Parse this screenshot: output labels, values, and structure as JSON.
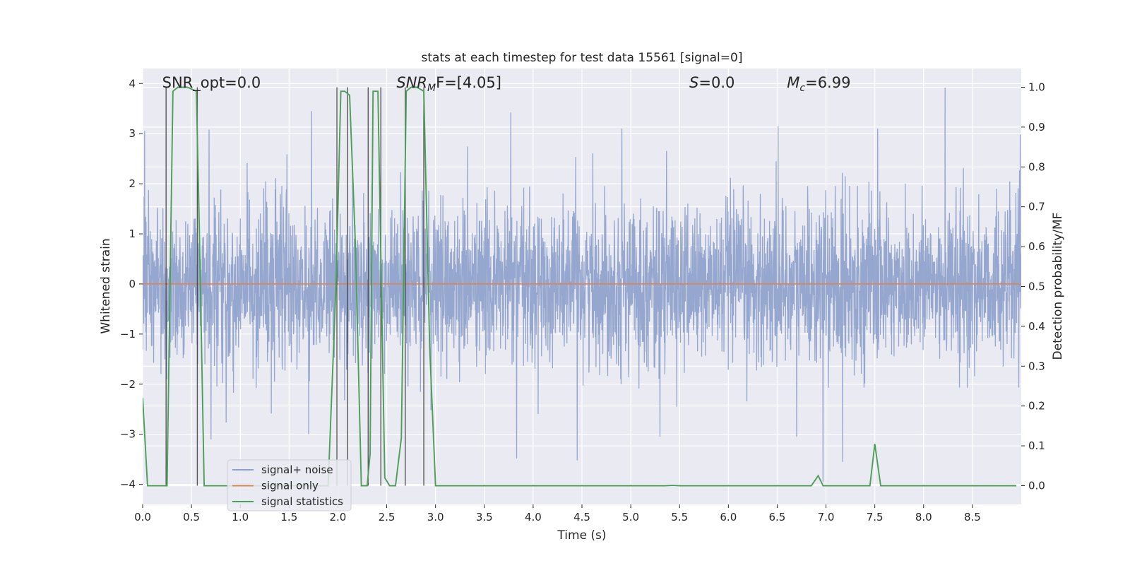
{
  "chart_data": {
    "type": "line",
    "title": "stats at each timestep for test data 15561 [signal=0]",
    "xlabel": "Time (s)",
    "ylabel": "Whitened strain",
    "ylabel_right": "Detection probability/MF",
    "xlim": [
      0,
      9
    ],
    "ylim": [
      -4.4,
      4.3
    ],
    "ylim_right": [
      -0.047,
      1.047
    ],
    "x_ticks": [
      0.0,
      0.5,
      1.0,
      1.5,
      2.0,
      2.5,
      3.0,
      3.5,
      4.0,
      4.5,
      5.0,
      5.5,
      6.0,
      6.5,
      7.0,
      7.5,
      8.0,
      8.5
    ],
    "x_tick_labels": [
      "0.0",
      "0.5",
      "1.0",
      "1.5",
      "2.0",
      "2.5",
      "3.0",
      "3.5",
      "4.0",
      "4.5",
      "5.0",
      "5.5",
      "6.0",
      "6.5",
      "7.0",
      "7.5",
      "8.0",
      "8.5"
    ],
    "y_ticks": [
      -4,
      -3,
      -2,
      -1,
      0,
      1,
      2,
      3,
      4
    ],
    "y_tick_labels": [
      "−4",
      "−3",
      "−2",
      "−1",
      "0",
      "1",
      "2",
      "3",
      "4"
    ],
    "y_right_ticks": [
      0.0,
      0.1,
      0.2,
      0.3,
      0.4,
      0.5,
      0.6,
      0.7,
      0.8,
      0.9,
      1.0
    ],
    "y_right_tick_labels": [
      "0.0",
      "0.1",
      "0.2",
      "0.3",
      "0.4",
      "0.5",
      "0.6",
      "0.7",
      "0.8",
      "0.9",
      "1.0"
    ],
    "grid": true,
    "legend_position": "bottom-left",
    "annotations": [
      {
        "text": "SNR_opt=0.0",
        "x": 0.2
      },
      {
        "text": "SNR",
        "sub": "M",
        "rest": "F=[4.05]",
        "x": 2.6
      },
      {
        "text": "S",
        "rest": "=0.0",
        "x": 5.6
      },
      {
        "text": "M",
        "sub": "c",
        "rest": "=6.99",
        "x": 6.6
      }
    ],
    "series": [
      {
        "name": "signal+ noise",
        "color": "#8da0cb",
        "axis": "left",
        "note": "whitened noise, std ~0.75, extremes ~ +3.9 / -3.6",
        "peaks": [
          {
            "x": 0.02,
            "y": 3.05
          },
          {
            "x": 0.68,
            "y": 3.08
          },
          {
            "x": 1.73,
            "y": 3.45
          },
          {
            "x": 3.77,
            "y": 3.42
          },
          {
            "x": 8.22,
            "y": 3.92
          },
          {
            "x": 6.51,
            "y": 3.15
          },
          {
            "x": 4.91,
            "y": 3.1
          },
          {
            "x": 7.53,
            "y": 3.1
          }
        ],
        "troughs": [
          {
            "x": 3.83,
            "y": -3.48
          },
          {
            "x": 4.45,
            "y": -3.52
          },
          {
            "x": 6.97,
            "y": -3.95
          },
          {
            "x": 7.17,
            "y": -3.55
          },
          {
            "x": 5.3,
            "y": -3.05
          },
          {
            "x": 0.7,
            "y": -3.1
          },
          {
            "x": 1.7,
            "y": -3.0
          },
          {
            "x": 6.7,
            "y": -3.05
          }
        ]
      },
      {
        "name": "signal only",
        "color": "#dd8452",
        "axis": "left",
        "x": [
          0,
          9
        ],
        "y": [
          0,
          0
        ]
      },
      {
        "name": "signal statistics",
        "color": "#4c9f58",
        "axis": "right",
        "x": [
          0.0,
          0.05,
          0.25,
          0.31,
          0.36,
          0.46,
          0.55,
          0.58,
          0.63,
          1.9,
          1.98,
          2.03,
          2.07,
          2.12,
          2.18,
          2.24,
          2.3,
          2.33,
          2.36,
          2.41,
          2.48,
          2.53,
          2.59,
          2.65,
          2.7,
          2.75,
          2.81,
          2.88,
          2.94,
          3.0,
          3.05,
          5.35,
          5.43,
          5.5,
          6.85,
          6.92,
          6.97,
          7.0,
          7.45,
          7.5,
          7.56,
          8.95
        ],
        "y": [
          0.22,
          0.0,
          0.0,
          0.99,
          1.0,
          1.0,
          0.99,
          0.65,
          0.0,
          0.0,
          0.5,
          0.99,
          0.99,
          0.98,
          0.6,
          0.0,
          0.0,
          0.08,
          0.99,
          0.99,
          0.02,
          0.0,
          0.0,
          0.12,
          0.99,
          1.0,
          1.0,
          0.99,
          0.35,
          0.0,
          0.0,
          0.0,
          0.001,
          0.0,
          0.0,
          0.025,
          0.0,
          0.0,
          0.0,
          0.105,
          0.0,
          0.0
        ]
      }
    ],
    "vertical_lines": [
      {
        "x": 0.24,
        "y_top": 1.0,
        "color": "#3c3c3c"
      },
      {
        "x": 0.56,
        "y_top": 1.0,
        "color": "#3c3c3c"
      },
      {
        "x": 1.99,
        "y_top": 1.0,
        "color": "#3c3c3c"
      },
      {
        "x": 2.1,
        "y_top": 1.0,
        "color": "#3c3c3c"
      },
      {
        "x": 2.31,
        "y_top": 1.0,
        "color": "#3c3c3c"
      },
      {
        "x": 2.44,
        "y_top": 1.0,
        "color": "#3c3c3c"
      },
      {
        "x": 2.69,
        "y_top": 1.0,
        "color": "#3c3c3c"
      },
      {
        "x": 2.88,
        "y_top": 1.0,
        "color": "#3c3c3c"
      }
    ],
    "colors": {
      "plot_bg": "#eaeaf2",
      "grid": "#ffffff",
      "legend_bg": "#eaeaf2"
    }
  }
}
